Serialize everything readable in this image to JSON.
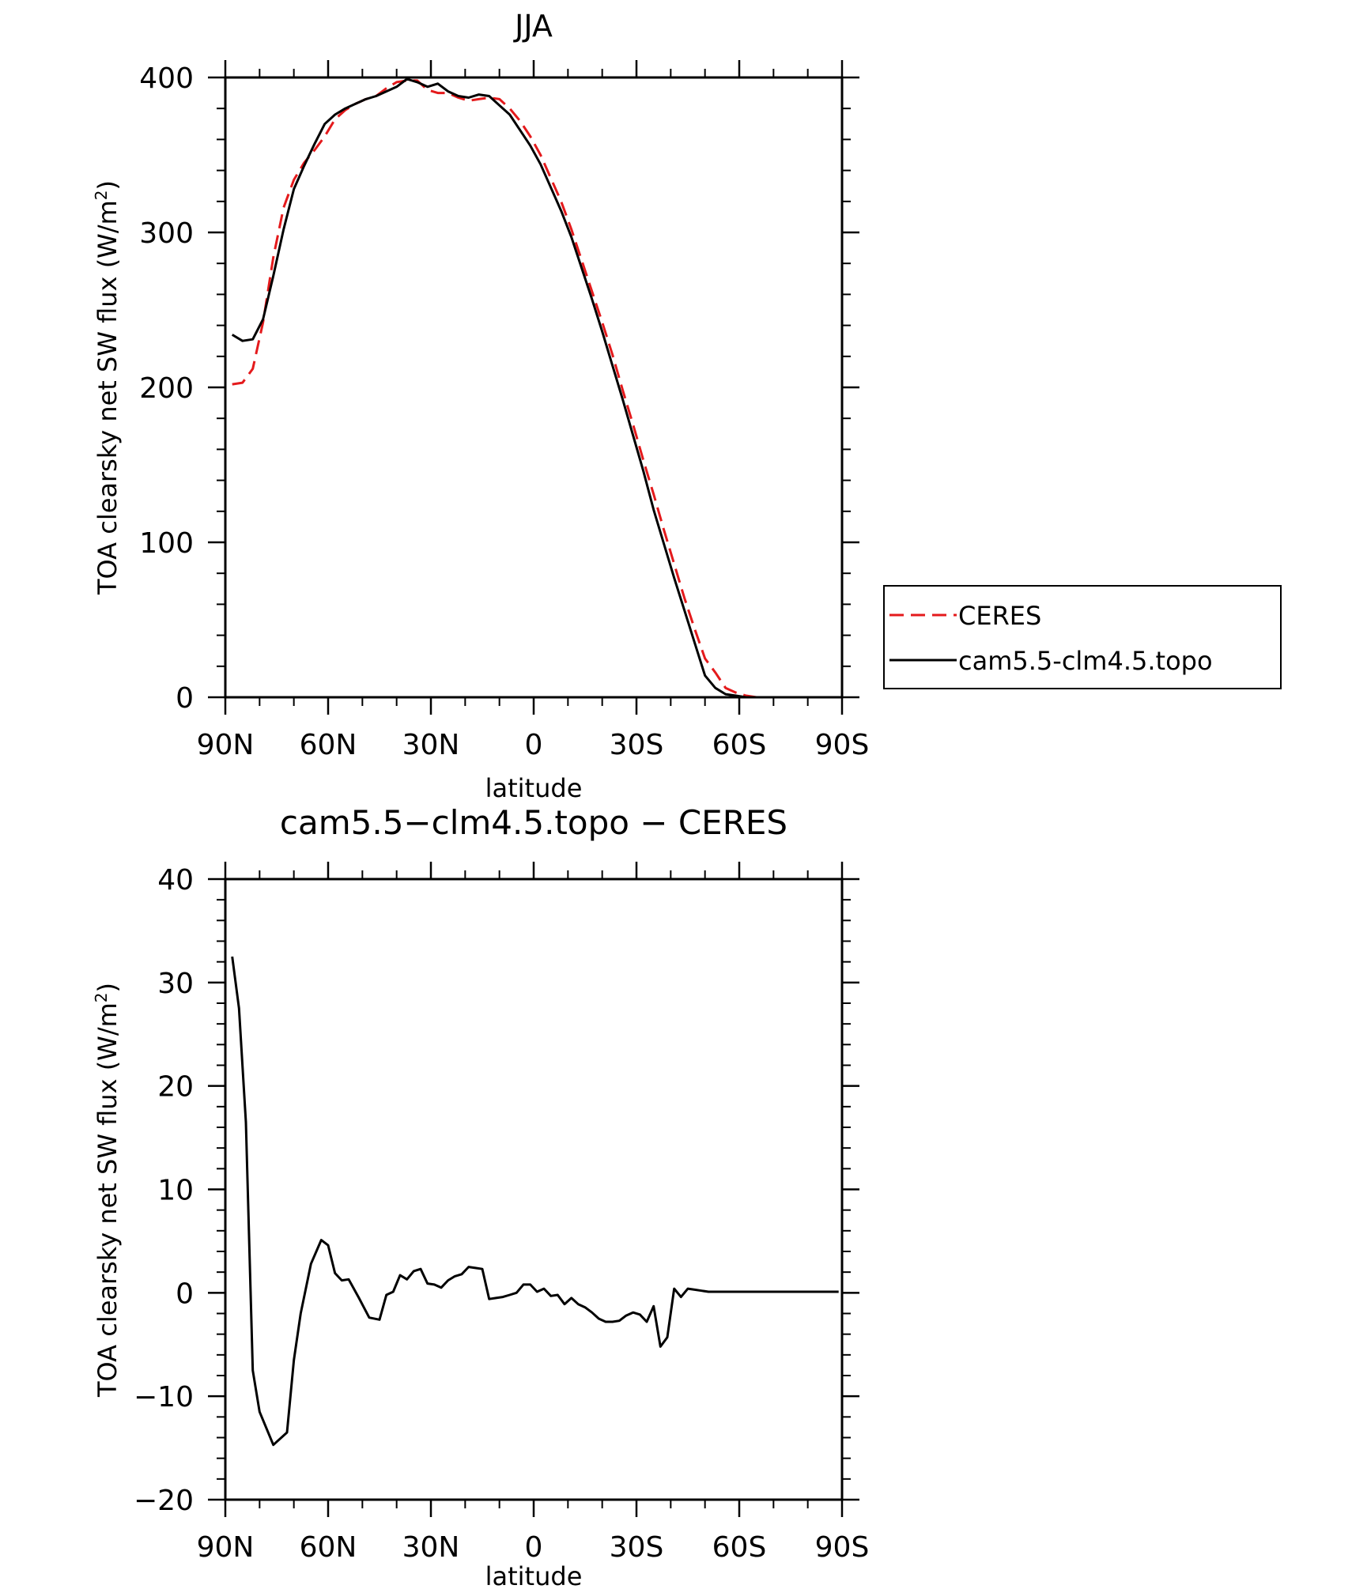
{
  "chart_data": [
    {
      "type": "line",
      "title": "JJA",
      "xlabel": "latitude",
      "ylabel": "TOA clearsky net SW flux (W/m",
      "ylabel_sup": "2",
      "ylabel_close": ")",
      "xlim": [
        90,
        -90
      ],
      "ylim": [
        0,
        400
      ],
      "xticks": [
        90,
        60,
        30,
        0,
        -30,
        -60,
        -90
      ],
      "xtick_labels": [
        "90N",
        "60N",
        "30N",
        "0",
        "30S",
        "60S",
        "90S"
      ],
      "yticks": [
        0,
        100,
        200,
        300,
        400
      ],
      "ytick_labels": [
        "0",
        "100",
        "200",
        "300",
        "400"
      ],
      "grid": false,
      "legend_position": "right",
      "series": [
        {
          "name": "CERES",
          "color": "#e41a1c",
          "dash": true,
          "x": [
            88,
            85,
            82,
            79,
            76,
            73,
            70,
            67,
            64,
            61,
            58,
            55,
            52,
            49,
            46,
            43,
            40,
            37,
            34,
            31,
            28,
            25,
            22,
            19,
            16,
            13,
            10,
            7,
            4,
            1,
            -2,
            -5,
            -8,
            -11,
            -14,
            -17,
            -20,
            -23,
            -26,
            -29,
            -32,
            -35,
            -38,
            -41,
            -44,
            -47,
            -50,
            -53,
            -56,
            -59,
            -62,
            -65,
            -68,
            -71,
            -74,
            -77,
            -80,
            -83,
            -86,
            -89
          ],
          "y": [
            202,
            203,
            212,
            242,
            284,
            316,
            334,
            345,
            353,
            362,
            373,
            379,
            383,
            386,
            388,
            393,
            397,
            398,
            398,
            392,
            390,
            390,
            387,
            385,
            386,
            387,
            386,
            380,
            372,
            362,
            350,
            335,
            320,
            302,
            282,
            262,
            242,
            221,
            198,
            176,
            153,
            131,
            108,
            86,
            64,
            44,
            25,
            16,
            6,
            3,
            1,
            0,
            0,
            0,
            0,
            0,
            0,
            0,
            0,
            0
          ]
        },
        {
          "name": "cam5.5-clm4.5.topo",
          "color": "#000000",
          "dash": false,
          "x": [
            88,
            85,
            82,
            79,
            76,
            73,
            70,
            67,
            64,
            61,
            58,
            55,
            52,
            49,
            46,
            43,
            40,
            37,
            34,
            31,
            28,
            25,
            22,
            19,
            16,
            13,
            10,
            7,
            4,
            1,
            -2,
            -5,
            -8,
            -11,
            -14,
            -17,
            -20,
            -23,
            -26,
            -29,
            -32,
            -35,
            -38,
            -41,
            -44,
            -47,
            -50,
            -53,
            -56,
            -59,
            -62,
            -65,
            -68,
            -71,
            -74,
            -77,
            -80,
            -83,
            -86,
            -89
          ],
          "y": [
            234,
            230,
            231,
            244,
            272,
            302,
            328,
            343,
            357,
            370,
            376,
            380,
            383,
            386,
            388,
            391,
            394,
            399,
            397,
            394,
            396,
            391,
            388,
            387,
            389,
            388,
            382,
            376,
            366,
            356,
            344,
            329,
            314,
            297,
            277,
            257,
            236,
            214,
            192,
            169,
            146,
            121,
            99,
            77,
            56,
            35,
            14,
            6,
            2,
            1,
            0,
            0,
            0,
            0,
            0,
            0,
            0,
            0,
            0,
            0
          ]
        }
      ]
    },
    {
      "type": "line",
      "title": "cam5.5−clm4.5.topo − CERES",
      "xlabel": "latitude",
      "ylabel": "TOA clearsky net SW flux (W/m",
      "ylabel_sup": "2",
      "ylabel_close": ")",
      "xlim": [
        90,
        -90
      ],
      "ylim": [
        -20,
        40
      ],
      "xticks": [
        90,
        60,
        30,
        0,
        -30,
        -60,
        -90
      ],
      "xtick_labels": [
        "90N",
        "60N",
        "30N",
        "0",
        "30S",
        "60S",
        "90S"
      ],
      "yticks": [
        -20,
        -10,
        0,
        10,
        20,
        30,
        40
      ],
      "ytick_labels": [
        "−20",
        "−10",
        "0",
        "10",
        "20",
        "30",
        "40"
      ],
      "grid": false,
      "series": [
        {
          "color": "#000000",
          "dash": false,
          "x": [
            88,
            86,
            84,
            82,
            80,
            76,
            72,
            70,
            68,
            65,
            62,
            60,
            58,
            56,
            54,
            51,
            48,
            45,
            43,
            41,
            39,
            37,
            35,
            33,
            31,
            29,
            27,
            25,
            23,
            21,
            19,
            17,
            15,
            13,
            11,
            9,
            7,
            5,
            3,
            1,
            -1,
            -3,
            -5,
            -7,
            -9,
            -11,
            -13,
            -15,
            -17,
            -19,
            -21,
            -23,
            -25,
            -27,
            -29,
            -31,
            -33,
            -35,
            -37,
            -39,
            -41,
            -43,
            -45,
            -47,
            -49,
            -51,
            -53,
            -55,
            -57,
            -59,
            -61,
            -63,
            -65,
            -67,
            -69,
            -71,
            -73,
            -75,
            -77,
            -79,
            -81,
            -83,
            -85,
            -87,
            -89
          ],
          "y": [
            32.5,
            27.5,
            16.5,
            -7.5,
            -11.5,
            -14.7,
            -13.5,
            -6.5,
            -2,
            2.8,
            5.1,
            4.6,
            1.9,
            1.2,
            1.3,
            -0.5,
            -2.4,
            -2.6,
            -0.2,
            0.1,
            1.7,
            1.3,
            2.1,
            2.3,
            0.9,
            0.8,
            0.5,
            1.2,
            1.6,
            1.8,
            2.5,
            2.4,
            2.3,
            -0.6,
            -0.5,
            -0.4,
            -0.2,
            0,
            0.8,
            0.8,
            0.1,
            0.4,
            -0.3,
            -0.2,
            -1.1,
            -0.5,
            -1.1,
            -1.4,
            -1.9,
            -2.5,
            -2.8,
            -2.8,
            -2.7,
            -2.2,
            -1.9,
            -2.1,
            -2.8,
            -1.3,
            -5.2,
            -4.3,
            0.4,
            -0.4,
            0.4,
            0.3,
            0.2,
            0.1,
            0.1,
            0.1,
            0.1,
            0.1,
            0.1,
            0.1,
            0.1,
            0.1,
            0.1,
            0.1,
            0.1,
            0.1,
            0.1,
            0.1,
            0.1,
            0.1,
            0.1,
            0.1,
            0.1
          ]
        }
      ]
    }
  ]
}
